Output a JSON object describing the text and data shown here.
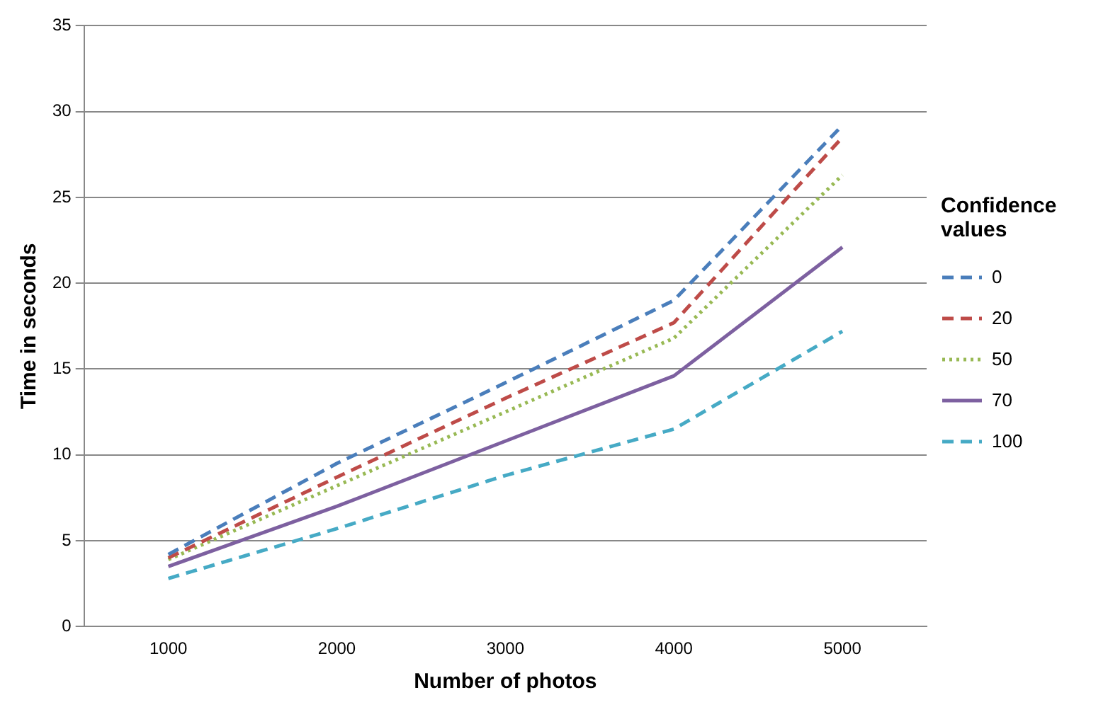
{
  "chart_data": {
    "type": "line",
    "xlabel": "Number of photos",
    "ylabel": "Time in seconds",
    "legend_title": "Confidence values",
    "categories": [
      "1000",
      "2000",
      "3000",
      "4000",
      "5000"
    ],
    "ylim": [
      0,
      35
    ],
    "yticks": [
      0,
      5,
      10,
      15,
      20,
      25,
      30,
      35
    ],
    "grid": "y",
    "legend": "right",
    "marker": "none",
    "series": [
      {
        "name": "0",
        "color": "#4a7ebb",
        "line_style": "dashed",
        "values": [
          4.2,
          9.5,
          14.2,
          19,
          29.2
        ]
      },
      {
        "name": "20",
        "color": "#be4b48",
        "line_style": "dashed",
        "values": [
          4.0,
          8.7,
          13.3,
          17.7,
          28.5
        ]
      },
      {
        "name": "50",
        "color": "#98b954",
        "line_style": "dotted",
        "values": [
          3.9,
          8.2,
          12.5,
          16.8,
          26.3
        ]
      },
      {
        "name": "70",
        "color": "#7d60a0",
        "line_style": "solid",
        "values": [
          3.5,
          7.0,
          10.8,
          14.6,
          22.1
        ]
      },
      {
        "name": "100",
        "color": "#46aac5",
        "line_style": "dashed",
        "values": [
          2.8,
          5.7,
          8.8,
          11.5,
          17.2
        ]
      }
    ]
  }
}
